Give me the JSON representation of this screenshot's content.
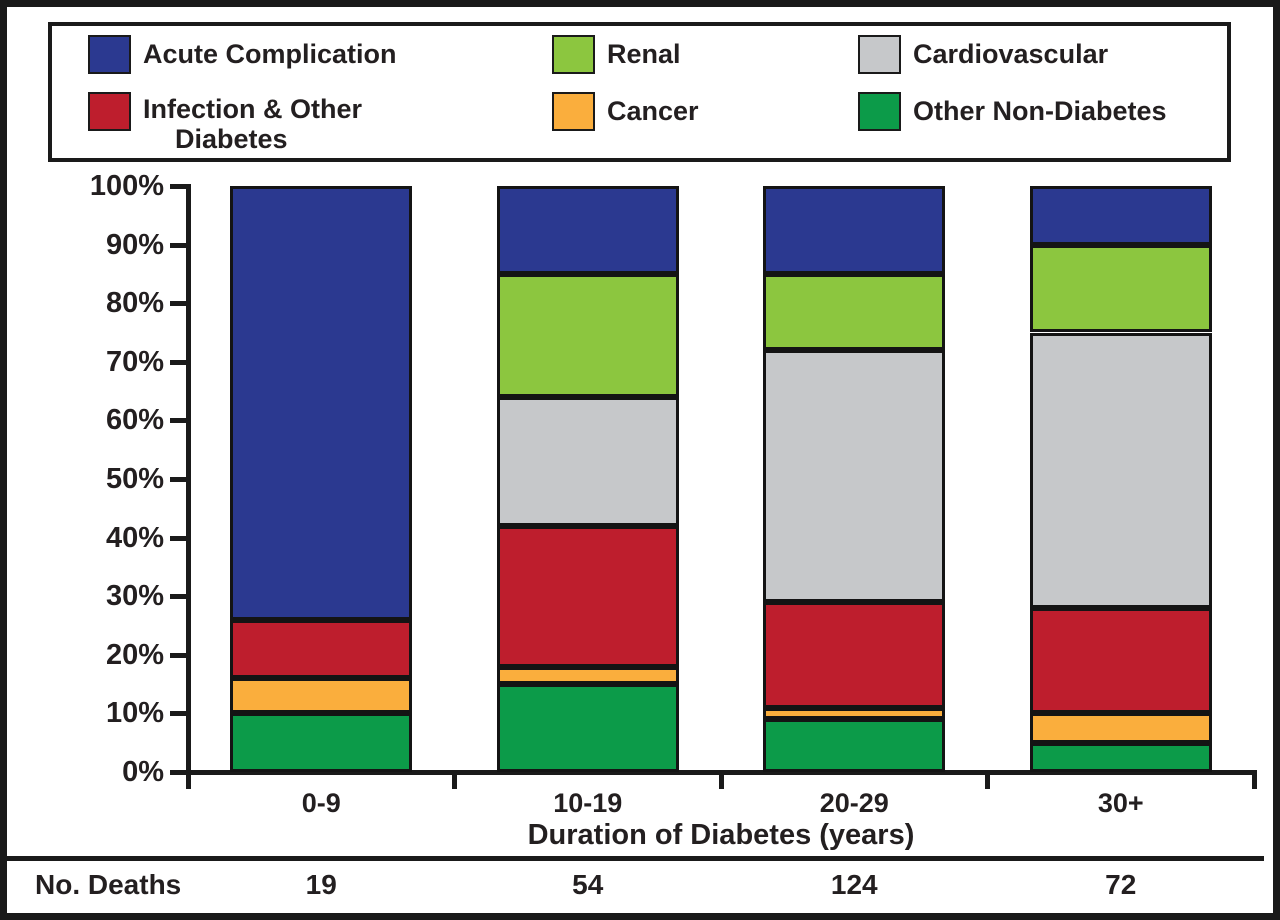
{
  "figure": {
    "background": "#ffffff",
    "frame_color": "#1a1a1a",
    "text_color": "#231f20"
  },
  "legend": {
    "items": [
      {
        "name": "acute-complication",
        "label": "Acute Complication",
        "label_lines": [
          "Acute Complication"
        ],
        "color": "#2B3990",
        "col": 0,
        "row": 0
      },
      {
        "name": "renal",
        "label": "Renal",
        "label_lines": [
          "Renal"
        ],
        "color": "#8CC63F",
        "col": 1,
        "row": 0
      },
      {
        "name": "cardiovascular",
        "label": "Cardiovascular",
        "label_lines": [
          "Cardiovascular"
        ],
        "color": "#C6C8CA",
        "col": 2,
        "row": 0
      },
      {
        "name": "infection-other-diabetes",
        "label": "Infection & Other Diabetes",
        "label_lines": [
          "Infection & Other",
          "Diabetes"
        ],
        "color": "#BE1E2D",
        "col": 0,
        "row": 1
      },
      {
        "name": "cancer",
        "label": "Cancer",
        "label_lines": [
          "Cancer"
        ],
        "color": "#FAAE3D",
        "col": 1,
        "row": 1
      },
      {
        "name": "other-non-diabetes",
        "label": "Other Non-Diabetes",
        "label_lines": [
          "Other Non-Diabetes"
        ],
        "color": "#0C9B49",
        "col": 2,
        "row": 1
      }
    ]
  },
  "chart_data": {
    "type": "bar",
    "stacked": true,
    "unit": "percent",
    "categories": [
      "0-9",
      "10-19",
      "20-29",
      "30+"
    ],
    "series": [
      {
        "name": "Other Non-Diabetes",
        "color": "#0C9B49",
        "values": [
          10,
          15,
          9,
          5
        ]
      },
      {
        "name": "Cancer",
        "color": "#FAAE3D",
        "values": [
          6,
          3,
          2,
          5
        ]
      },
      {
        "name": "Infection & Other Diabetes",
        "color": "#BE1E2D",
        "values": [
          10,
          24,
          18,
          18
        ]
      },
      {
        "name": "Cardiovascular",
        "color": "#C6C8CA",
        "values": [
          0,
          22,
          43,
          47
        ]
      },
      {
        "name": "Renal",
        "color": "#8CC63F",
        "values": [
          0,
          21,
          13,
          15
        ]
      },
      {
        "name": "Acute Complication",
        "color": "#2B3990",
        "values": [
          74,
          15,
          15,
          10
        ]
      }
    ],
    "xlabel": "Duration of Diabetes (years)",
    "ylabel": "",
    "ylim": [
      0,
      100
    ],
    "y_tick_step": 10,
    "y_tick_labels": [
      "0%",
      "10%",
      "20%",
      "30%",
      "40%",
      "50%",
      "60%",
      "70%",
      "80%",
      "90%",
      "100%"
    ],
    "grid": false,
    "legend_position": "top"
  },
  "deaths_row": {
    "label": "No. Deaths",
    "values": [
      "19",
      "54",
      "124",
      "72"
    ]
  }
}
